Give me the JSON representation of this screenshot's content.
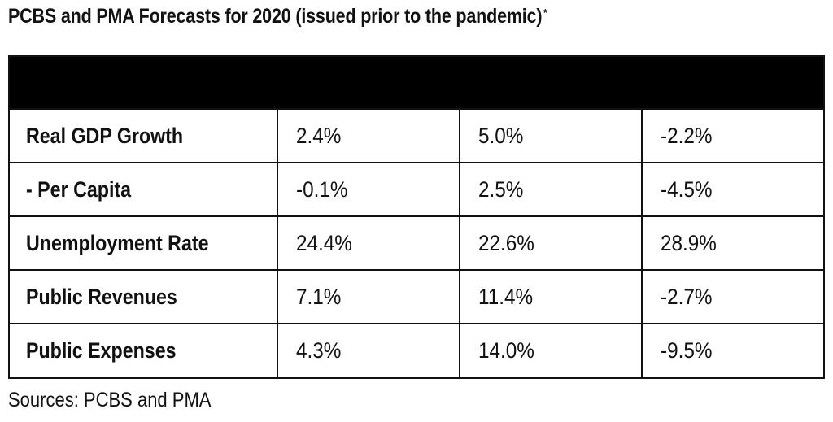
{
  "title": "PCBS and PMA Forecasts for 2020 (issued prior to the pandemic)",
  "title_mark": "*",
  "table": {
    "rows": [
      {
        "label": "Real GDP Growth",
        "values": [
          "2.4%",
          "5.0%",
          "-2.2%"
        ]
      },
      {
        "label": "- Per Capita",
        "values": [
          "-0.1%",
          "2.5%",
          "-4.5%"
        ]
      },
      {
        "label": "Unemployment Rate",
        "values": [
          "24.4%",
          "22.6%",
          "28.9%"
        ]
      },
      {
        "label": "Public Revenues",
        "values": [
          "7.1%",
          "11.4%",
          "-2.7%"
        ]
      },
      {
        "label": "Public Expenses",
        "values": [
          "4.3%",
          "14.0%",
          "-9.5%"
        ]
      }
    ]
  },
  "footer": "Sources: PCBS and PMA",
  "colors": {
    "header_band": "#000000",
    "text": "#111111",
    "background": "#ffffff"
  }
}
